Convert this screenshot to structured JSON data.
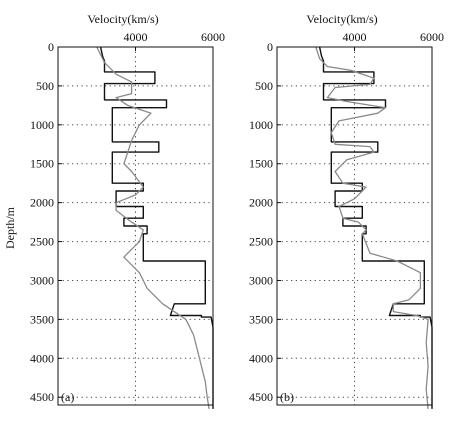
{
  "figure": {
    "y_axis_label": "Depth/m",
    "colors": {
      "true_model": "#111111",
      "inverted": "#8a8a8a",
      "grid": "#444444"
    }
  },
  "chart_data": [
    {
      "type": "line",
      "panel_label": "(a)",
      "xlabel": "Velocity(km/s)",
      "ylabel": "Depth/m",
      "x_ticks": [
        4000,
        6000
      ],
      "y_ticks": [
        0,
        500,
        1000,
        1500,
        2000,
        2500,
        3000,
        3500,
        4000,
        4500
      ],
      "xlim": [
        2000,
        6000
      ],
      "ylim": [
        0,
        4600
      ],
      "y_inverted": true,
      "grid": true,
      "series": [
        {
          "style": "black",
          "x": [
            3100,
            3150,
            3200,
            3200,
            3200,
            4500,
            4500,
            3200,
            3200,
            4800,
            4800,
            3400,
            3400,
            4600,
            4600,
            3400,
            3400,
            4200,
            4200,
            3500,
            3500,
            4200,
            4200,
            3700,
            3700,
            4300,
            4300,
            4200,
            4200,
            5800,
            5800,
            5000,
            4900,
            5700,
            5700,
            5950,
            6000,
            6000
          ],
          "y": [
            0,
            120,
            180,
            300,
            320,
            320,
            470,
            470,
            680,
            680,
            780,
            780,
            1220,
            1220,
            1350,
            1350,
            1750,
            1750,
            1850,
            1850,
            2050,
            2050,
            2200,
            2200,
            2300,
            2300,
            2400,
            2400,
            2750,
            2750,
            3300,
            3300,
            3450,
            3450,
            3470,
            3470,
            3600,
            4650
          ]
        },
        {
          "style": "gray",
          "x": [
            3000,
            3200,
            3500,
            3900,
            3900,
            3500,
            3800,
            4400,
            4100,
            3900,
            3800,
            3700,
            3900,
            4200,
            4000,
            3500,
            3500,
            3900,
            4200,
            4100,
            3900,
            3700,
            3900,
            4100,
            4200,
            4300,
            4700,
            5300,
            5500,
            5600,
            5700,
            5800,
            5850,
            5900
          ],
          "y": [
            0,
            200,
            350,
            450,
            600,
            650,
            750,
            850,
            1000,
            1200,
            1350,
            1500,
            1600,
            1800,
            1900,
            2000,
            2100,
            2250,
            2350,
            2500,
            2600,
            2700,
            2800,
            2900,
            3000,
            3100,
            3300,
            3500,
            3700,
            3900,
            4100,
            4300,
            4500,
            4650
          ]
        }
      ]
    },
    {
      "type": "line",
      "panel_label": "(b)",
      "xlabel": "Velocity(km/s)",
      "ylabel": "Depth/m",
      "x_ticks": [
        4000,
        6000
      ],
      "y_ticks": [
        0,
        500,
        1000,
        1500,
        2000,
        2500,
        3000,
        3500,
        4000,
        4500
      ],
      "xlim": [
        2000,
        6000
      ],
      "ylim": [
        0,
        4600
      ],
      "y_inverted": true,
      "grid": true,
      "series": [
        {
          "style": "black",
          "x": [
            3100,
            3150,
            3200,
            3200,
            3200,
            4500,
            4500,
            3200,
            3200,
            4800,
            4800,
            3400,
            3400,
            4600,
            4600,
            3400,
            3400,
            4200,
            4200,
            3500,
            3500,
            4200,
            4200,
            3700,
            3700,
            4300,
            4300,
            4200,
            4200,
            5800,
            5800,
            5000,
            4900,
            5700,
            5700,
            5950,
            6000,
            6000
          ],
          "y": [
            0,
            120,
            180,
            300,
            320,
            320,
            470,
            470,
            680,
            680,
            780,
            780,
            1220,
            1220,
            1350,
            1350,
            1750,
            1750,
            1850,
            1850,
            2050,
            2050,
            2200,
            2200,
            2300,
            2300,
            2400,
            2400,
            2750,
            2750,
            3300,
            3300,
            3450,
            3450,
            3470,
            3470,
            3600,
            4650
          ]
        },
        {
          "style": "gray",
          "x": [
            3000,
            3100,
            3300,
            3900,
            4500,
            4400,
            3500,
            3300,
            3800,
            4800,
            4600,
            3600,
            3400,
            3500,
            4400,
            4500,
            3800,
            3500,
            3700,
            4300,
            4000,
            3600,
            3700,
            4100,
            4300,
            4200,
            4400,
            5100,
            5700,
            5700,
            5400,
            5000,
            5000,
            5600,
            5900,
            5850,
            5900,
            5850,
            5900
          ],
          "y": [
            0,
            150,
            250,
            300,
            400,
            480,
            520,
            650,
            700,
            780,
            850,
            950,
            1100,
            1250,
            1280,
            1350,
            1450,
            1600,
            1750,
            1800,
            1950,
            2050,
            2200,
            2250,
            2350,
            2400,
            2650,
            2750,
            2900,
            3100,
            3250,
            3300,
            3400,
            3450,
            3500,
            3800,
            4100,
            4400,
            4650
          ]
        }
      ]
    }
  ]
}
